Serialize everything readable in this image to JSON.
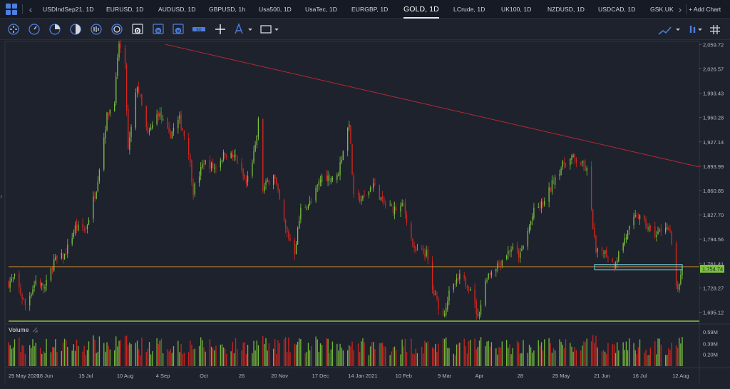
{
  "tabs": [
    {
      "label": "USDIndSep21, 1D",
      "active": false
    },
    {
      "label": "EURUSD, 1D",
      "active": false
    },
    {
      "label": "AUDUSD, 1D",
      "active": false
    },
    {
      "label": "GBPUSD, 1h",
      "active": false
    },
    {
      "label": "Usa500, 1D",
      "active": false
    },
    {
      "label": "UsaTec, 1D",
      "active": false
    },
    {
      "label": "EURGBP, 1D",
      "active": false
    },
    {
      "label": "GOLD, 1D",
      "active": true
    },
    {
      "label": "LCrude, 1D",
      "active": false
    },
    {
      "label": "UK100, 1D",
      "active": false
    },
    {
      "label": "NZDUSD, 1D",
      "active": false
    },
    {
      "label": "USDCAD, 1D",
      "active": false
    },
    {
      "label": "GSK.UK",
      "active": false
    }
  ],
  "add_chart_label": "+ Add Chart",
  "toolbar": {
    "left_icons": [
      "crosshair-circle-icon",
      "clock-circle-icon",
      "pie-circle-icon",
      "half-circle-icon",
      "bar-circle-icon",
      "ring-circle-icon",
      "calendar-d-icon",
      "calendar-w-icon",
      "calendar-m-icon",
      "indicator-icon",
      "crosshair-icon",
      "draw-pen-icon",
      "rectangle-icon"
    ],
    "right_icons": [
      "chart-type-icon",
      "settings-sliders-icon",
      "grid-hash-icon"
    ]
  },
  "colors": {
    "background": "#1e222d",
    "up_candle": "#7cc33c",
    "down_candle": "#d7261e",
    "trendline": "#b32a33",
    "support_line": "#9fd44a",
    "resistance_line": "#c98b2a",
    "price_box": "#6ec6e0",
    "accent_blue": "#4c7fe0"
  },
  "chart_data": {
    "type": "candlestick",
    "symbol": "GOLD, 1D",
    "y_axis": {
      "ticks": [
        "2,059.72",
        "2,026.57",
        "1,993.43",
        "1,960.28",
        "1,927.14",
        "1,893.99",
        "1,860.85",
        "1,827.70",
        "1,794.56",
        "1,761.41",
        "1,728.27",
        "1,695.12"
      ],
      "range": [
        1681,
        2062
      ]
    },
    "current_price": "1,754.74",
    "x_axis": {
      "ticks": [
        "25 May 2020",
        "18 Jun",
        "15 Jul",
        "10 Aug",
        "4 Sep",
        "Oct",
        "26",
        "20 Nov",
        "17 Dec",
        "14 Jan 2021",
        "10 Feb",
        "9 Mar",
        "Apr",
        "28",
        "25 May",
        "21 Jun",
        "16 Jul",
        "12 Aug"
      ],
      "range": [
        "2020-05-25",
        "2021-08-13"
      ]
    },
    "volume": {
      "label": "Volume",
      "ticks": [
        "0.59M",
        "0.39M",
        "0.20M"
      ],
      "range": [
        0,
        0.59
      ]
    },
    "price_path": [
      [
        "2020-05-25",
        1735
      ],
      [
        "2020-05-29",
        1742
      ],
      [
        "2020-06-05",
        1705
      ],
      [
        "2020-06-12",
        1738
      ],
      [
        "2020-06-18",
        1728
      ],
      [
        "2020-06-24",
        1765
      ],
      [
        "2020-07-01",
        1772
      ],
      [
        "2020-07-08",
        1810
      ],
      [
        "2020-07-15",
        1808
      ],
      [
        "2020-07-22",
        1865
      ],
      [
        "2020-07-29",
        1962
      ],
      [
        "2020-08-03",
        1985
      ],
      [
        "2020-08-06",
        2062
      ],
      [
        "2020-08-10",
        2028
      ],
      [
        "2020-08-12",
        1915
      ],
      [
        "2020-08-18",
        2005
      ],
      [
        "2020-08-25",
        1935
      ],
      [
        "2020-09-01",
        1968
      ],
      [
        "2020-09-08",
        1935
      ],
      [
        "2020-09-15",
        1958
      ],
      [
        "2020-09-21",
        1915
      ],
      [
        "2020-09-24",
        1860
      ],
      [
        "2020-10-01",
        1900
      ],
      [
        "2020-10-08",
        1892
      ],
      [
        "2020-10-15",
        1912
      ],
      [
        "2020-10-22",
        1905
      ],
      [
        "2020-10-29",
        1870
      ],
      [
        "2020-11-04",
        1918
      ],
      [
        "2020-11-06",
        1955
      ],
      [
        "2020-11-09",
        1862
      ],
      [
        "2020-11-16",
        1885
      ],
      [
        "2020-11-24",
        1808
      ],
      [
        "2020-11-30",
        1778
      ],
      [
        "2020-12-04",
        1835
      ],
      [
        "2020-12-11",
        1845
      ],
      [
        "2020-12-18",
        1880
      ],
      [
        "2020-12-28",
        1878
      ],
      [
        "2021-01-05",
        1955
      ],
      [
        "2021-01-08",
        1850
      ],
      [
        "2021-01-14",
        1850
      ],
      [
        "2021-01-21",
        1870
      ],
      [
        "2021-01-28",
        1842
      ],
      [
        "2021-02-04",
        1835
      ],
      [
        "2021-02-10",
        1840
      ],
      [
        "2021-02-17",
        1778
      ],
      [
        "2021-02-25",
        1775
      ],
      [
        "2021-03-01",
        1725
      ],
      [
        "2021-03-08",
        1690
      ],
      [
        "2021-03-12",
        1720
      ],
      [
        "2021-03-19",
        1742
      ],
      [
        "2021-03-26",
        1730
      ],
      [
        "2021-03-31",
        1688
      ],
      [
        "2021-04-06",
        1745
      ],
      [
        "2021-04-15",
        1765
      ],
      [
        "2021-04-22",
        1782
      ],
      [
        "2021-04-28",
        1772
      ],
      [
        "2021-05-07",
        1832
      ],
      [
        "2021-05-14",
        1845
      ],
      [
        "2021-05-21",
        1880
      ],
      [
        "2021-05-27",
        1898
      ],
      [
        "2021-06-01",
        1905
      ],
      [
        "2021-06-07",
        1898
      ],
      [
        "2021-06-11",
        1888
      ],
      [
        "2021-06-17",
        1775
      ],
      [
        "2021-06-22",
        1780
      ],
      [
        "2021-06-29",
        1760
      ],
      [
        "2021-07-06",
        1795
      ],
      [
        "2021-07-14",
        1828
      ],
      [
        "2021-07-21",
        1810
      ],
      [
        "2021-07-27",
        1800
      ],
      [
        "2021-08-02",
        1815
      ],
      [
        "2021-08-05",
        1802
      ],
      [
        "2021-08-09",
        1730
      ],
      [
        "2021-08-11",
        1728
      ],
      [
        "2021-08-13",
        1755
      ]
    ],
    "annotations": [
      {
        "type": "trendline",
        "from": [
          "2020-08-13",
          2060
        ],
        "to": [
          "2021-08-13",
          1893
        ]
      },
      {
        "type": "horizontal",
        "y": 1757,
        "color": "resistance"
      },
      {
        "type": "horizontal",
        "y": 1683,
        "color": "support"
      },
      {
        "type": "box",
        "x": [
          "2021-06-16",
          "2021-08-13"
        ],
        "y": [
          1753,
          1760
        ]
      }
    ],
    "grid": false,
    "legend": "none"
  }
}
